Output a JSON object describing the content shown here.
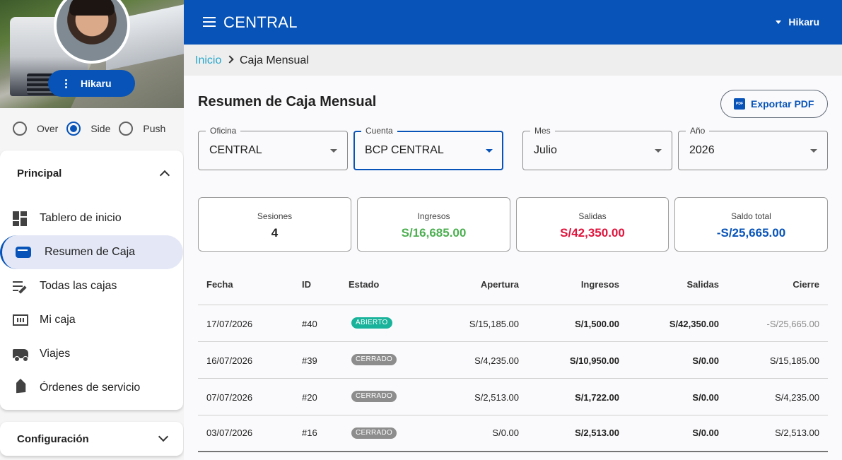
{
  "app": {
    "title": "CENTRAL",
    "user": "Hikaru"
  },
  "sidebar": {
    "user_chip": "Hikaru",
    "modes": [
      {
        "label": "Over",
        "checked": false
      },
      {
        "label": "Side",
        "checked": true
      },
      {
        "label": "Push",
        "checked": false
      }
    ],
    "sections": {
      "principal": "Principal",
      "configuracion": "Configuración"
    },
    "items": [
      {
        "label": "Tablero de inicio",
        "icon": "dashboard-icon"
      },
      {
        "label": "Resumen de Caja",
        "icon": "wallet-icon",
        "active": true
      },
      {
        "label": "Todas las cajas",
        "icon": "playlist-edit-icon"
      },
      {
        "label": "Mi caja",
        "icon": "cash-icon"
      },
      {
        "label": "Viajes",
        "icon": "truck-icon"
      },
      {
        "label": "Órdenes de servicio",
        "icon": "tag-icon"
      }
    ]
  },
  "breadcrumb": {
    "home": "Inicio",
    "current": "Caja Mensual"
  },
  "page": {
    "title": "Resumen de Caja Mensual",
    "export_label": "Exportar PDF",
    "pdf_badge": "PDF"
  },
  "filters": {
    "oficina": {
      "label": "Oficina",
      "value": "CENTRAL"
    },
    "cuenta": {
      "label": "Cuenta",
      "value": "BCP CENTRAL"
    },
    "mes": {
      "label": "Mes",
      "value": "Julio"
    },
    "anio": {
      "label": "Año",
      "value": "2026"
    }
  },
  "stats": {
    "sesiones": {
      "label": "Sesiones",
      "value": "4",
      "color": "#212121"
    },
    "ingresos": {
      "label": "Ingresos",
      "value": "S/16,685.00",
      "color": "#4caf50"
    },
    "salidas": {
      "label": "Salidas",
      "value": "S/42,350.00",
      "color": "#e0143c"
    },
    "saldo": {
      "label": "Saldo total",
      "value": "-S/25,665.00",
      "color": "#0753b8"
    }
  },
  "table": {
    "headers": {
      "fecha": "Fecha",
      "id": "ID",
      "estado": "Estado",
      "apertura": "Apertura",
      "ingresos": "Ingresos",
      "salidas": "Salidas",
      "cierre": "Cierre"
    },
    "rows": [
      {
        "fecha": "17/07/2026",
        "id": "#40",
        "estado": "ABIERTO",
        "apertura": "S/15,185.00",
        "ingresos": "S/1,500.00",
        "salidas": "S/42,350.00",
        "cierre": "-S/25,665.00"
      },
      {
        "fecha": "16/07/2026",
        "id": "#39",
        "estado": "CERRADO",
        "apertura": "S/4,235.00",
        "ingresos": "S/10,950.00",
        "salidas": "S/0.00",
        "cierre": "S/15,185.00"
      },
      {
        "fecha": "07/07/2026",
        "id": "#20",
        "estado": "CERRADO",
        "apertura": "S/2,513.00",
        "ingresos": "S/1,722.00",
        "salidas": "S/0.00",
        "cierre": "S/4,235.00"
      },
      {
        "fecha": "03/07/2026",
        "id": "#16",
        "estado": "CERRADO",
        "apertura": "S/0.00",
        "ingresos": "S/2,513.00",
        "salidas": "S/0.00",
        "cierre": "S/2,513.00"
      }
    ]
  },
  "colors": {
    "primary": "#0753b8",
    "open_chip": "#18b39a",
    "closed_chip": "#8d8d8d",
    "link": "#26a6c9"
  }
}
